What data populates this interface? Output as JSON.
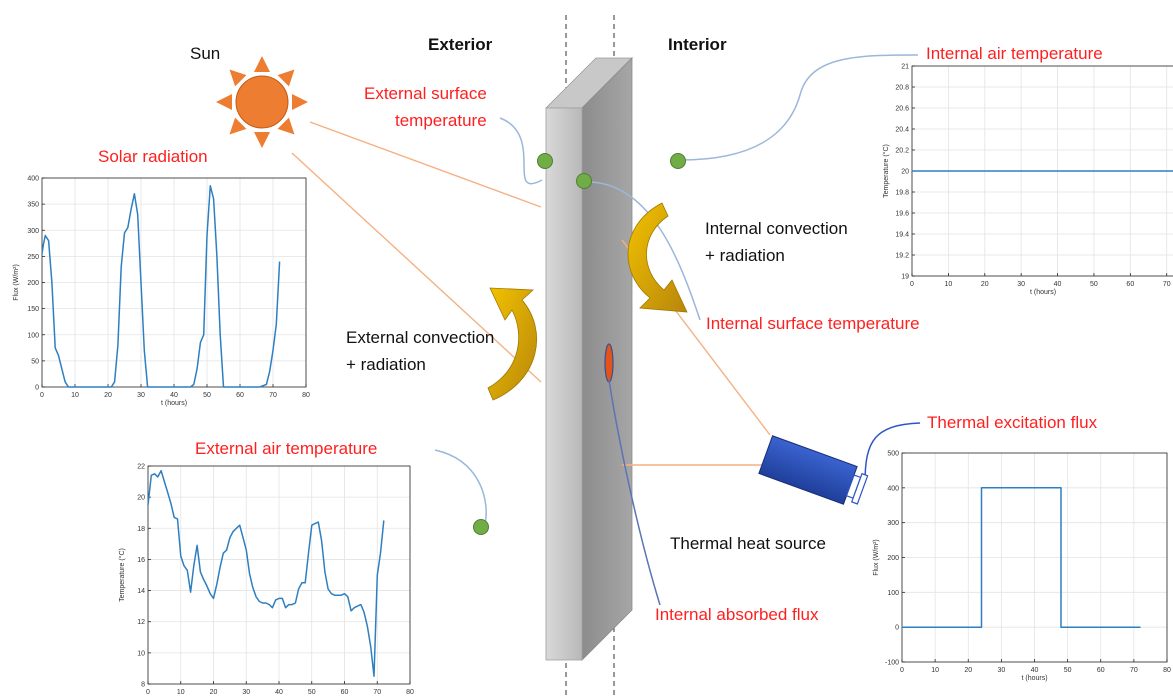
{
  "labels": {
    "sun": "Sun",
    "exterior": "Exterior",
    "interior": "Interior",
    "solar_radiation": "Solar radiation",
    "external_surface_temperature_1": "External surface",
    "external_surface_temperature_2": "temperature",
    "internal_air_temperature": "Internal air temperature",
    "internal_convection_1": "Internal convection",
    "internal_convection_2": "+ radiation",
    "external_convection_1": "External convection",
    "external_convection_2": "+ radiation",
    "internal_surface_temperature": "Internal surface temperature",
    "external_air_temperature": "External air temperature",
    "thermal_excitation_flux": "Thermal excitation flux",
    "thermal_heat_source": "Thermal heat source",
    "internal_absorbed_flux": "Internal absorbed flux"
  },
  "colors": {
    "label_red": "#ff1f1f",
    "sun_orange": "#ed7d31",
    "sensor_green": "#70ad47",
    "arrow_gold": "#c9a100",
    "heat_source_blue": "#2f55c4",
    "plot_line": "#2e7fc1",
    "leader_blue": "#9bb7d9",
    "ray_orange": "#f4b183"
  },
  "chart_data": [
    {
      "id": "solar",
      "type": "line",
      "title": "",
      "xlabel": "t (hours)",
      "ylabel": "Flux (W/m²)",
      "xlim": [
        0,
        80
      ],
      "ylim": [
        0,
        400
      ],
      "xticks": [
        0,
        10,
        20,
        30,
        40,
        50,
        60,
        70,
        80
      ],
      "yticks": [
        0,
        50,
        100,
        150,
        200,
        250,
        300,
        350,
        400
      ],
      "grid": true,
      "series": [
        {
          "x": [
            0,
            0.5,
            1,
            2,
            3,
            4,
            5,
            6,
            7,
            8,
            9,
            10,
            12,
            14,
            16,
            18,
            20,
            21,
            22,
            23,
            24,
            25,
            26,
            27,
            28,
            29,
            30,
            31,
            32,
            34,
            36,
            38,
            40,
            42,
            44,
            45,
            46,
            47,
            48,
            49,
            50,
            51,
            52,
            53,
            54,
            55,
            56,
            58,
            60,
            62,
            64,
            66,
            68,
            69,
            70,
            71,
            72
          ],
          "y": [
            255,
            275,
            290,
            280,
            200,
            75,
            60,
            35,
            10,
            0,
            0,
            0,
            0,
            0,
            0,
            0,
            0,
            0,
            10,
            80,
            230,
            295,
            305,
            340,
            370,
            330,
            200,
            70,
            0,
            0,
            0,
            0,
            0,
            0,
            0,
            0,
            5,
            35,
            85,
            100,
            290,
            385,
            360,
            250,
            100,
            0,
            0,
            0,
            0,
            0,
            0,
            0,
            5,
            30,
            70,
            120,
            240
          ]
        }
      ]
    },
    {
      "id": "ext_air",
      "type": "line",
      "title": "",
      "xlabel": "t (hours)",
      "ylabel": "Temperature (°C)",
      "xlim": [
        0,
        80
      ],
      "ylim": [
        8,
        22
      ],
      "xticks": [
        0,
        10,
        20,
        30,
        40,
        50,
        60,
        70,
        80
      ],
      "yticks": [
        8,
        10,
        12,
        14,
        16,
        18,
        20,
        22
      ],
      "grid": true,
      "series": [
        {
          "x": [
            0,
            1,
            2,
            3,
            4,
            5,
            6,
            7,
            8,
            9,
            10,
            11,
            12,
            13,
            14,
            15,
            16,
            17,
            18,
            19,
            20,
            21,
            22,
            23,
            24,
            25,
            26,
            27,
            28,
            29,
            30,
            31,
            32,
            33,
            34,
            35,
            36,
            37,
            38,
            39,
            40,
            41,
            42,
            43,
            44,
            45,
            46,
            47,
            48,
            49,
            50,
            51,
            52,
            53,
            54,
            55,
            56,
            57,
            58,
            59,
            60,
            61,
            62,
            63,
            64,
            65,
            66,
            67,
            68,
            69,
            70,
            71,
            72
          ],
          "y": [
            19.5,
            21.4,
            21.5,
            21.3,
            21.7,
            21.0,
            20.3,
            19.6,
            18.7,
            18.6,
            16.2,
            15.6,
            15.3,
            13.9,
            15.6,
            16.9,
            15.2,
            14.7,
            14.3,
            13.8,
            13.5,
            14.4,
            15.5,
            16.4,
            16.6,
            17.4,
            17.8,
            18.0,
            18.2,
            17.4,
            16.6,
            15.1,
            14.2,
            13.6,
            13.3,
            13.2,
            13.2,
            13.1,
            12.9,
            13.4,
            13.5,
            13.5,
            12.9,
            13.1,
            13.1,
            13.2,
            14.1,
            14.5,
            14.5,
            16.4,
            18.2,
            18.3,
            18.4,
            17.2,
            15.2,
            14.1,
            13.8,
            13.7,
            13.7,
            13.7,
            13.8,
            13.6,
            12.7,
            12.9,
            13.0,
            13.1,
            12.6,
            11.7,
            10.4,
            8.5,
            15.0,
            16.4,
            18.5
          ]
        }
      ]
    },
    {
      "id": "int_air",
      "type": "line",
      "title": "",
      "xlabel": "t (hours)",
      "ylabel": "Temperature (°C)",
      "xlim": [
        0,
        72
      ],
      "ylim": [
        19,
        21
      ],
      "xticks": [
        0,
        10,
        20,
        30,
        40,
        50,
        60,
        70
      ],
      "yticks": [
        19,
        19.2,
        19.4,
        19.6,
        19.8,
        20,
        20.2,
        20.4,
        20.6,
        20.8,
        21
      ],
      "grid": true,
      "series": [
        {
          "x": [
            0,
            72
          ],
          "y": [
            20,
            20
          ]
        }
      ]
    },
    {
      "id": "excitation",
      "type": "line",
      "title": "",
      "xlabel": "t (hours)",
      "ylabel": "Flux (W/m²)",
      "xlim": [
        0,
        80
      ],
      "ylim": [
        -100,
        500
      ],
      "xticks": [
        0,
        10,
        20,
        30,
        40,
        50,
        60,
        70,
        80
      ],
      "yticks": [
        -100,
        0,
        100,
        200,
        300,
        400,
        500
      ],
      "grid": true,
      "series": [
        {
          "x": [
            0,
            24,
            24,
            48,
            48,
            72
          ],
          "y": [
            0,
            0,
            400,
            400,
            0,
            0
          ]
        }
      ]
    }
  ]
}
